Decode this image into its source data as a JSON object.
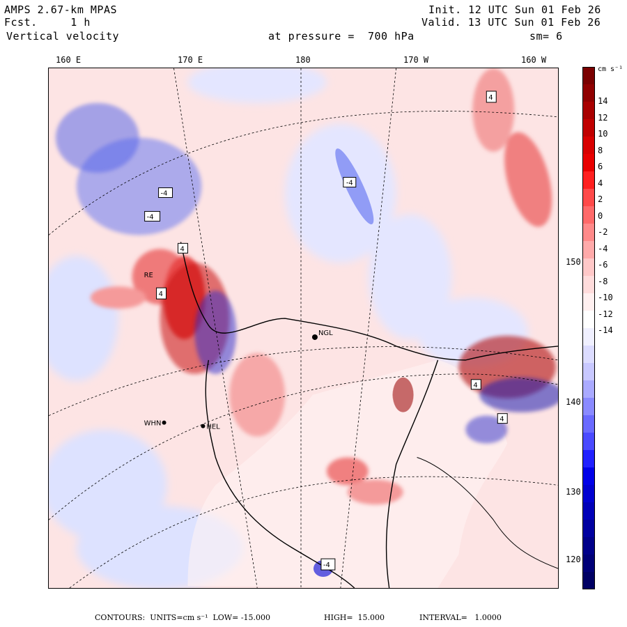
{
  "header": {
    "model": "AMPS 2.67-km MPAS",
    "fcst": "Fcst.     1 h",
    "field": "Vertical velocity",
    "pressure": "at pressure =  700 hPa",
    "init": "Init. 12 UTC Sun 01 Feb 26",
    "valid": "Valid. 13 UTC Sun 01 Feb 26",
    "smooth": "sm= 6"
  },
  "longitude_labels": [
    "160 E",
    "170 E",
    "180",
    "170 W",
    "160 W"
  ],
  "latitude_labels": [
    "150 W",
    "140 W",
    "130 W",
    "120 W"
  ],
  "colorbar": {
    "unit": "cm s⁻¹",
    "labels": [
      "14",
      "12",
      "10",
      "8",
      "6",
      "4",
      "2",
      "0",
      "-2",
      "-4",
      "-6",
      "-8",
      "-10",
      "-12",
      "-14"
    ],
    "colors": [
      "#7a0000",
      "#900000",
      "#a80000",
      "#c00000",
      "#d80000",
      "#e80000",
      "#ff2020",
      "#ff4a4a",
      "#ff6a6a",
      "#ff8a8a",
      "#ffaaaa",
      "#ffc8c8",
      "#ffdcdc",
      "#fff0f0",
      "#ffffff",
      "#f0f0ff",
      "#dcdcff",
      "#c8c8ff",
      "#aaaaff",
      "#8a8aff",
      "#6a6aff",
      "#4a4aff",
      "#2020ff",
      "#0000e8",
      "#0000d0",
      "#0000b8",
      "#0000a0",
      "#00008a",
      "#000078",
      "#000064"
    ]
  },
  "stations": [
    {
      "name": "NGL"
    },
    {
      "name": "WHN"
    },
    {
      "name": "HEL"
    },
    {
      "name": "RE"
    }
  ],
  "box_labels": [
    "4",
    "-4",
    "4",
    "-4",
    "-4",
    "4",
    "4",
    "-4",
    "4"
  ],
  "footer": {
    "contours": "CONTOURS:  UNITS=cm s⁻¹  LOW= -15.000",
    "high": "HIGH=  15.000",
    "interval": "INTERVAL=   1.0000"
  }
}
